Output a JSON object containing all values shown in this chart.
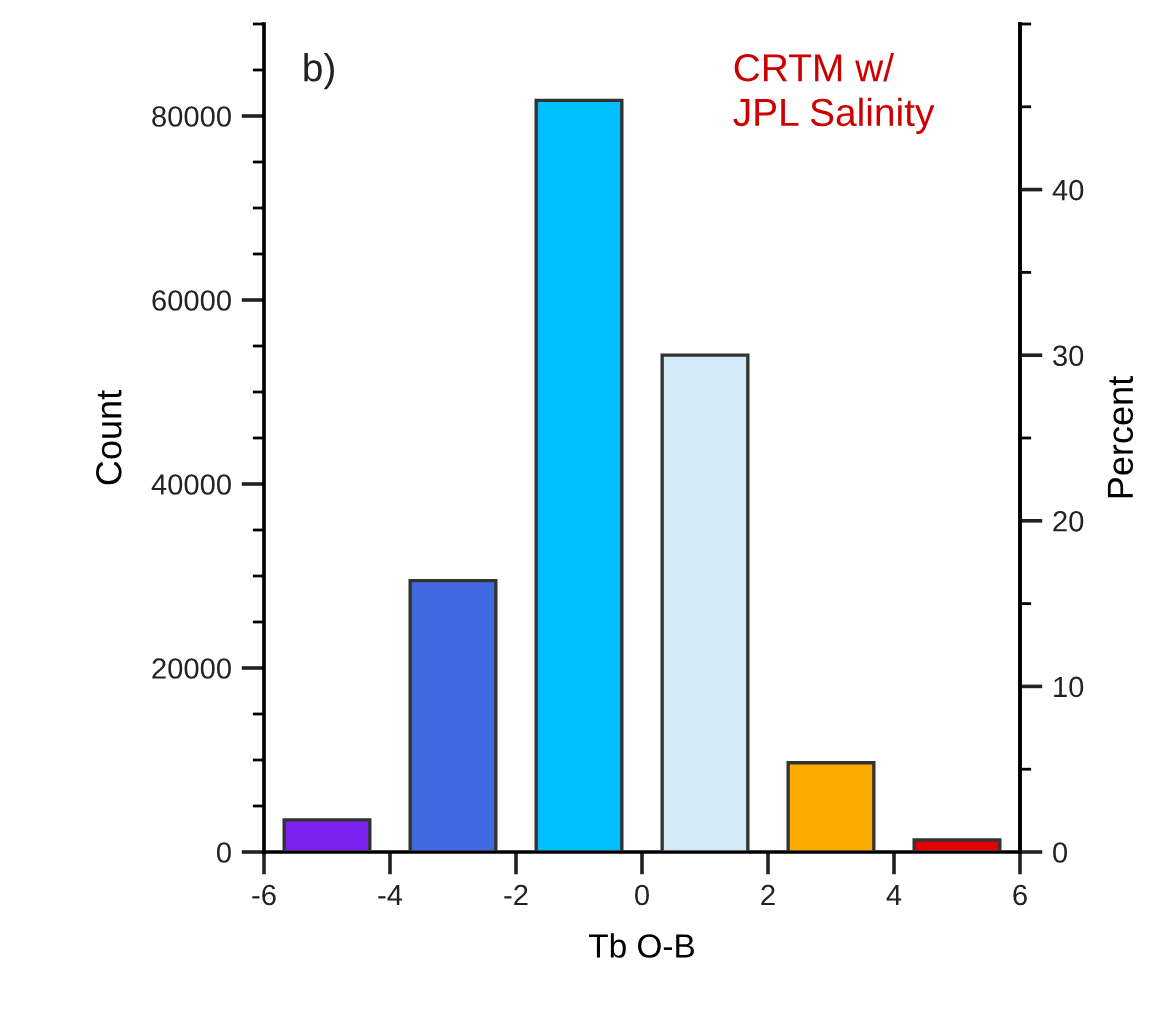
{
  "chart_data": {
    "type": "histogram",
    "xlabel": "Tb O-B",
    "ylabel": "Count",
    "y2label": "Percent",
    "bins": [
      -6,
      -4,
      -2,
      0,
      2,
      4,
      6
    ],
    "values": [
      3500,
      29500,
      81700,
      54000,
      9700,
      1300
    ],
    "colors": [
      "#7b22ee",
      "#4169e1",
      "#00bfff",
      "#d2eaf8",
      "#ffaa00",
      "#e50000"
    ],
    "xlim": [
      -6,
      6
    ],
    "xticks": [
      -6,
      -4,
      -2,
      0,
      2,
      4,
      6
    ],
    "ylim": [
      0,
      90000
    ],
    "yticks": [
      0,
      20000,
      40000,
      60000,
      80000
    ],
    "y2lim": [
      0,
      50
    ],
    "y2ticks": [
      0,
      10,
      20,
      30,
      40
    ],
    "annotations": [
      "b)",
      "CRTM w/\nJPL Salinity"
    ],
    "grid": false,
    "legend": false
  }
}
